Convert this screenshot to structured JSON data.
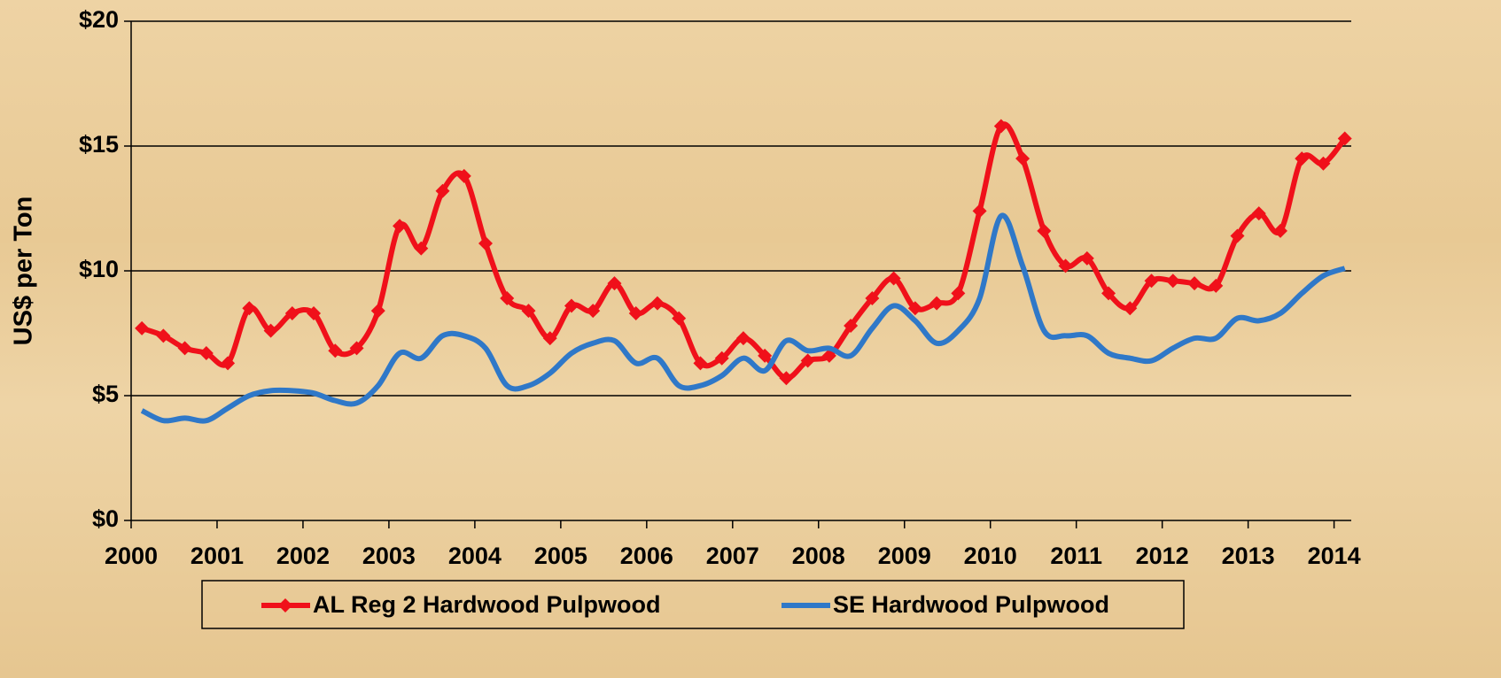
{
  "chart_data": {
    "type": "line",
    "y_label": "US$ per Ton",
    "x": [
      2000.125,
      2000.375,
      2000.625,
      2000.875,
      2001.125,
      2001.375,
      2001.625,
      2001.875,
      2002.125,
      2002.375,
      2002.625,
      2002.875,
      2003.125,
      2003.375,
      2003.625,
      2003.875,
      2004.125,
      2004.375,
      2004.625,
      2004.875,
      2005.125,
      2005.375,
      2005.625,
      2005.875,
      2006.125,
      2006.375,
      2006.625,
      2006.875,
      2007.125,
      2007.375,
      2007.625,
      2007.875,
      2008.125,
      2008.375,
      2008.625,
      2008.875,
      2009.125,
      2009.375,
      2009.625,
      2009.875,
      2010.125,
      2010.375,
      2010.625,
      2010.875,
      2011.125,
      2011.375,
      2011.625,
      2011.875,
      2012.125,
      2012.375,
      2012.625,
      2012.875,
      2013.125,
      2013.375,
      2013.625,
      2013.875,
      2014.125
    ],
    "series": [
      {
        "name": "AL Reg 2 Hardwood Pulpwood",
        "color": "#f0101a",
        "markers": true,
        "values": [
          7.7,
          7.4,
          6.9,
          6.7,
          6.3,
          8.5,
          7.6,
          8.3,
          8.3,
          6.8,
          6.9,
          8.4,
          11.8,
          10.9,
          13.2,
          13.8,
          11.1,
          8.9,
          8.4,
          7.3,
          8.6,
          8.4,
          9.5,
          8.3,
          8.7,
          8.1,
          6.3,
          6.5,
          7.3,
          6.6,
          5.7,
          6.4,
          6.6,
          7.8,
          8.9,
          9.7,
          8.5,
          8.7,
          9.1,
          12.4,
          15.8,
          14.5,
          11.6,
          10.2,
          10.5,
          9.1,
          8.5,
          9.6,
          9.6,
          9.5,
          9.4,
          11.4,
          12.3,
          11.6,
          14.5,
          14.3,
          15.3
        ]
      },
      {
        "name": "SE Hardwood Pulpwood",
        "color": "#2f78c8",
        "markers": false,
        "values": [
          4.4,
          4.0,
          4.1,
          4.0,
          4.5,
          5.0,
          5.2,
          5.2,
          5.1,
          4.8,
          4.7,
          5.4,
          6.7,
          6.5,
          7.4,
          7.4,
          6.9,
          5.4,
          5.4,
          5.9,
          6.7,
          7.1,
          7.2,
          6.3,
          6.5,
          5.4,
          5.4,
          5.8,
          6.5,
          6.0,
          7.2,
          6.8,
          6.9,
          6.6,
          7.7,
          8.6,
          8.0,
          7.1,
          7.6,
          8.9,
          12.2,
          10.2,
          7.6,
          7.4,
          7.4,
          6.7,
          6.5,
          6.4,
          6.9,
          7.3,
          7.3,
          8.1,
          8.0,
          8.3,
          9.1,
          9.8,
          10.1
        ]
      }
    ],
    "xlim": [
      2000,
      2014.2
    ],
    "xticks": [
      2000,
      2001,
      2002,
      2003,
      2004,
      2005,
      2006,
      2007,
      2008,
      2009,
      2010,
      2011,
      2012,
      2013,
      2014
    ],
    "ylim": [
      0,
      20
    ],
    "yticks": [
      {
        "value": 0,
        "label": "$0"
      },
      {
        "value": 5,
        "label": "$5"
      },
      {
        "value": 10,
        "label": "$10"
      },
      {
        "value": 15,
        "label": "$15"
      },
      {
        "value": 20,
        "label": "$20"
      }
    ],
    "grid": true,
    "legend": "bottom",
    "smooth": true
  }
}
